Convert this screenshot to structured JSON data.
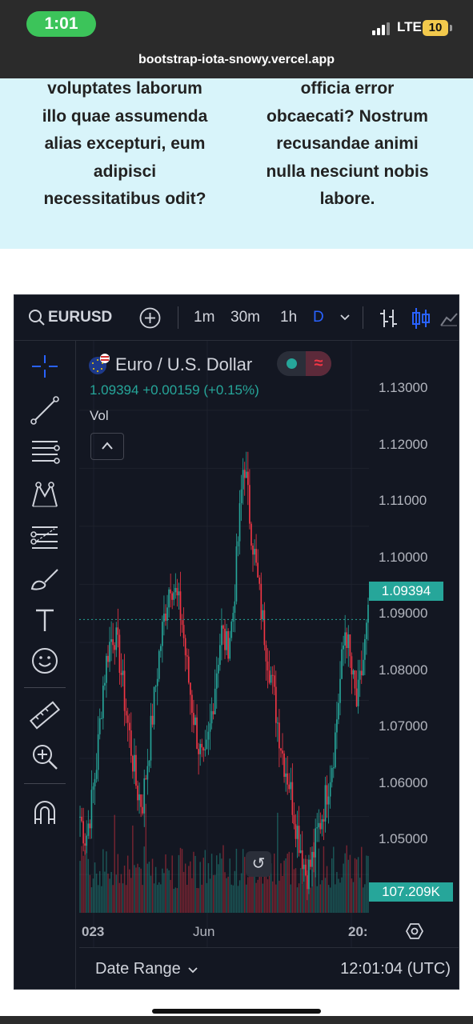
{
  "status_bar": {
    "time": "1:01",
    "network": "LTE",
    "battery": "10",
    "url": "bootstrap-iota-snowy.vercel.app"
  },
  "page_text": {
    "column_left": [
      "voluptates laborum",
      "illo quae assumenda",
      "alias excepturi, eum",
      "adipisci",
      "necessitatibus odit?"
    ],
    "column_right": [
      "officia error",
      "obcaecati? Nostrum",
      "recusandae animi",
      "nulla nesciunt nobis",
      "labore."
    ]
  },
  "toolbar": {
    "symbol": "EURUSD",
    "intervals": [
      "1m",
      "30m",
      "1h",
      "D"
    ],
    "active_interval": "D",
    "icons": [
      "search-icon",
      "add-compare-icon",
      "chevron-down-icon",
      "bar-style-icon",
      "candles-style-icon",
      "area-style-icon"
    ]
  },
  "left_tools": [
    "crosshair-icon",
    "trend-line-icon",
    "horizontal-lines-icon",
    "pattern-icon",
    "fib-lines-icon",
    "brush-icon",
    "text-icon",
    "emoji-icon",
    "ruler-icon",
    "zoom-in-icon",
    "magnet-icon"
  ],
  "legend": {
    "title": "Euro / U.S. Dollar",
    "price": "1.09394",
    "change": "+0.00159",
    "change_pct": "(+0.15%)",
    "volume_label": "Vol"
  },
  "chart_data": {
    "type": "candlestick",
    "symbol": "EURUSD",
    "y_ticks": [
      "1.13000",
      "1.12000",
      "1.11000",
      "1.10000",
      "1.09000",
      "1.08000",
      "1.07000",
      "1.06000",
      "1.05000"
    ],
    "ylim": [
      1.0434,
      1.1348
    ],
    "last_price": "1.09394",
    "last_price_value": 1.09394,
    "last_volume": "107.209K",
    "x_ticks": [
      "023",
      "Jun",
      "20:"
    ],
    "up_color": "#26a69a",
    "down_color": "#f23645",
    "path_close": [
      1.06,
      1.056,
      1.062,
      1.07,
      1.082,
      1.089,
      1.092,
      1.087,
      1.079,
      1.072,
      1.065,
      1.062,
      1.07,
      1.079,
      1.088,
      1.095,
      1.101,
      1.098,
      1.094,
      1.085,
      1.078,
      1.072,
      1.068,
      1.075,
      1.084,
      1.092,
      1.089,
      1.094,
      1.108,
      1.122,
      1.112,
      1.104,
      1.096,
      1.089,
      1.083,
      1.076,
      1.07,
      1.066,
      1.06,
      1.055,
      1.05,
      1.052,
      1.057,
      1.061,
      1.066,
      1.072,
      1.083,
      1.093,
      1.085,
      1.079,
      1.086,
      1.094
    ]
  },
  "bottom_bar": {
    "date_range_label": "Date Range",
    "time_label": "12:01:04 (UTC)"
  },
  "colors": {
    "widget_bg": "#131722",
    "accent_blue": "#2962ff",
    "page_band": "#d8f4fa"
  }
}
